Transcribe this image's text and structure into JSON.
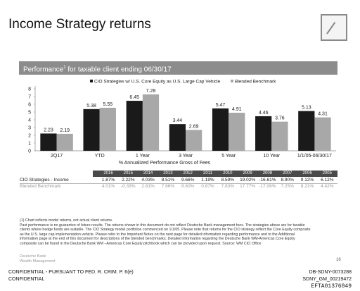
{
  "page": {
    "title": "Income Strategy returns",
    "banner_text": "Performance",
    "banner_sup": "1",
    "banner_rest": " for taxable client ending 06/30/17"
  },
  "chart_data": {
    "type": "bar",
    "categories": [
      "2Q17",
      "YTD",
      "1 Year",
      "3 Year",
      "5 Year",
      "10 Year",
      "1/1/05-06/30/17"
    ],
    "series": [
      {
        "name": "CIO Strategies w/ U.S. Core Equity as U.S. Large Cap Vehicle",
        "color": "#1a1a1a",
        "values": [
          2.23,
          5.38,
          6.45,
          3.44,
          5.47,
          4.46,
          5.13
        ],
        "labels": [
          "2.23",
          "5.38",
          "6.45",
          "3.44",
          "5.47",
          "4.46",
          "5.13"
        ]
      },
      {
        "name": "Blended Benchmark",
        "color": "#a8a8a8",
        "values": [
          2.19,
          5.55,
          7.28,
          2.69,
          4.91,
          3.76,
          4.31
        ],
        "labels": [
          "2.19",
          "5.55",
          "7.28",
          "2.69",
          "4.91",
          "3.76",
          "4.31"
        ]
      }
    ],
    "y_ticks": [
      "0",
      "1",
      "2",
      "3",
      "4",
      "5",
      "6",
      "7",
      "8"
    ],
    "ylim": [
      0,
      8
    ],
    "xlabel": "% Annualized Performance Gross of Fees",
    "ylabel": "",
    "grid": false,
    "legend_position": "top"
  },
  "table": {
    "years": [
      "2016",
      "2015",
      "2014",
      "2013",
      "2012",
      "2011",
      "2010",
      "2009",
      "2008",
      "2007",
      "2006",
      "2005"
    ],
    "rows": [
      {
        "label": "CIO Strategies - Income",
        "values": [
          "1.87%",
          "2.22%",
          "4.03%",
          "8.51%",
          "9.66%",
          "1.19%",
          "8.59%",
          "19.02%",
          "-16.61%",
          "8.90%",
          "9.12%",
          "6.12%"
        ]
      },
      {
        "label": "Blended Benchmark",
        "values": [
          "4.01%",
          "-0.33%",
          "2.81%",
          "7.66%",
          "8.60%",
          "0.87%",
          "7.83%",
          "17.77%",
          "-17.06%",
          "7.25%",
          "8.21%",
          "4.42%"
        ]
      }
    ]
  },
  "notes": [
    "(1) Chart reflects model returns, not actual client returns.",
    "Past performance is no guarantee of future results. The returns shown in this document do not reflect Deutsche Bank management fees. The strategies above are for taxable",
    "clients where hedge funds are suitable. The CIO Strategy model portfolios commenced on 1/1/05. Please note that returns for the CIO strategy reflect the Core Equity composite",
    "as the U.S. large cap implementation vehicle. Please refer to the Important Notes on the next page for detailed information regarding performance and to the Additional",
    "information page at the end of this document for descriptions of the blended benchmarks. Detailed information regarding the Deutsche Bank WM-Americas Core Equity",
    "composite can be found in the Deutsche Bank WM –Americas Core Equity pitchbook which can be provided upon request. Source: WM CIO Office"
  ],
  "footer": {
    "brand_line1": "Deutsche Bank",
    "brand_line2": "Wealth Management",
    "page_number": "16",
    "confidential1": "CONFIDENTIAL - PURSUANT TO FED. R. CRIM. P. 6(e)",
    "confidential2": "CONFIDENTIAL",
    "bates1": "DB-SDNY-0073288",
    "bates2": "SDNY_GM_00219472",
    "bates3": "EFTA01376849"
  }
}
